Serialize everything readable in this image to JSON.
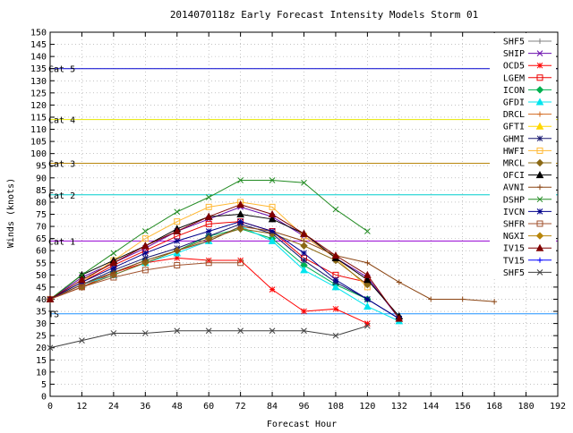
{
  "chart_data": {
    "type": "line",
    "title": "2014070118z Early Forecast Intensity Models Storm 01",
    "xlabel": "Forecast Hour",
    "ylabel": "Winds (knots)",
    "xlim": [
      0,
      192
    ],
    "ylim": [
      0,
      150
    ],
    "xticks": [
      0,
      12,
      24,
      36,
      48,
      60,
      72,
      84,
      96,
      108,
      120,
      132,
      144,
      156,
      168,
      180,
      192
    ],
    "yticks": [
      0,
      5,
      10,
      15,
      20,
      25,
      30,
      35,
      40,
      45,
      50,
      55,
      60,
      65,
      70,
      75,
      80,
      85,
      90,
      95,
      100,
      105,
      110,
      115,
      120,
      125,
      130,
      135,
      140,
      145,
      150
    ],
    "grid": true,
    "legend_position": "right",
    "reference_lines": [
      {
        "label": "TS",
        "value": 34,
        "color": "#1e90ff"
      },
      {
        "label": "Cat 1",
        "value": 64,
        "color": "#9400d3"
      },
      {
        "label": "Cat 2",
        "value": 83,
        "color": "#00cdcd"
      },
      {
        "label": "Cat 3",
        "value": 96,
        "color": "#b8860b"
      },
      {
        "label": "Cat 4",
        "value": 114,
        "color": "#e6e600"
      },
      {
        "label": "Cat 5",
        "value": 135,
        "color": "#0000cd"
      }
    ],
    "series": [
      {
        "name": "SHF5",
        "color": "#808080",
        "marker": "plus",
        "x": [],
        "y": []
      },
      {
        "name": "SHIP",
        "color": "#6a0dad",
        "marker": "x",
        "x": [
          0,
          12,
          24,
          36,
          48,
          60,
          72,
          84,
          96,
          108,
          120,
          132
        ],
        "y": [
          40,
          49,
          55,
          61,
          68,
          73,
          78,
          74,
          66,
          57,
          49,
          32
        ]
      },
      {
        "name": "OCD5",
        "color": "#ff0000",
        "marker": "star",
        "x": [
          0,
          12,
          24,
          36,
          48,
          60,
          72,
          84,
          96,
          108,
          120
        ],
        "y": [
          40,
          45,
          51,
          55,
          57,
          56,
          56,
          44,
          35,
          36,
          30
        ]
      },
      {
        "name": "LGEM",
        "color": "#ee0000",
        "marker": "square",
        "x": [
          0,
          12,
          24,
          36,
          48,
          60,
          72,
          84,
          96,
          108,
          120
        ],
        "y": [
          40,
          47,
          54,
          60,
          66,
          71,
          72,
          68,
          57,
          50,
          47
        ]
      },
      {
        "name": "ICON",
        "color": "#00b050",
        "marker": "diamond",
        "x": [
          0,
          12,
          24,
          36,
          48,
          60,
          72,
          84,
          96,
          108,
          120
        ],
        "y": [
          40,
          46,
          51,
          56,
          60,
          66,
          69,
          65,
          54,
          46,
          40
        ]
      },
      {
        "name": "GFDI",
        "color": "#00e5ee",
        "marker": "triangle",
        "x": [
          0,
          12,
          24,
          36,
          48,
          60,
          72,
          84,
          96,
          108,
          120,
          132
        ],
        "y": [
          40,
          46,
          50,
          55,
          59,
          64,
          70,
          64,
          52,
          45,
          37,
          31
        ]
      },
      {
        "name": "DRCL",
        "color": "#d2691e",
        "marker": "plus",
        "x": [],
        "y": []
      },
      {
        "name": "GFTI",
        "color": "#ffd700",
        "marker": "triangle",
        "x": [],
        "y": []
      },
      {
        "name": "GHMI",
        "color": "#191970",
        "marker": "star",
        "x": [
          0,
          12,
          24,
          36,
          48,
          60,
          72,
          84,
          96,
          108,
          120,
          132
        ],
        "y": [
          40,
          46,
          52,
          57,
          61,
          66,
          71,
          67,
          56,
          47,
          40,
          32
        ]
      },
      {
        "name": "HWFI",
        "color": "#ffb833",
        "marker": "square",
        "x": [
          0,
          12,
          24,
          36,
          48,
          60,
          72,
          84,
          96,
          108,
          120
        ],
        "y": [
          40,
          47,
          56,
          65,
          72,
          78,
          80,
          78,
          66,
          57,
          45
        ]
      },
      {
        "name": "MRCL",
        "color": "#8b6914",
        "marker": "diamond",
        "x": [
          0,
          12,
          24,
          36,
          48,
          60,
          72,
          84,
          96,
          108,
          120
        ],
        "y": [
          40,
          45,
          50,
          55,
          60,
          65,
          69,
          67,
          62,
          56,
          46
        ]
      },
      {
        "name": "OFCI",
        "color": "#000000",
        "marker": "triangle",
        "x": [
          0,
          12,
          24,
          36,
          48,
          60,
          72,
          84,
          96,
          108,
          120,
          132
        ],
        "y": [
          40,
          50,
          56,
          62,
          69,
          74,
          75,
          73,
          67,
          57,
          48,
          33
        ]
      },
      {
        "name": "AVNI",
        "color": "#8b4513",
        "marker": "plus",
        "x": [
          0,
          12,
          24,
          36,
          48,
          60,
          72,
          84,
          96,
          108,
          120,
          132,
          144,
          156,
          168
        ],
        "y": [
          40,
          46,
          51,
          56,
          60,
          64,
          70,
          68,
          64,
          58,
          55,
          47,
          40,
          40,
          39
        ]
      },
      {
        "name": "DSHP",
        "color": "#228b22",
        "marker": "x",
        "x": [
          0,
          12,
          24,
          36,
          48,
          60,
          72,
          84,
          96,
          108,
          120
        ],
        "y": [
          40,
          50,
          59,
          68,
          76,
          82,
          89,
          89,
          88,
          77,
          68
        ]
      },
      {
        "name": "IVCN",
        "color": "#00008b",
        "marker": "star",
        "x": [
          0,
          12,
          24,
          36,
          48,
          60,
          72,
          84,
          96,
          108,
          120,
          132
        ],
        "y": [
          40,
          47,
          53,
          59,
          64,
          68,
          72,
          68,
          59,
          48,
          40,
          32
        ]
      },
      {
        "name": "SHFR",
        "color": "#a0522d",
        "marker": "square",
        "x": [
          0,
          12,
          24,
          36,
          48,
          60,
          72
        ],
        "y": [
          40,
          45,
          49,
          52,
          54,
          55,
          55
        ]
      },
      {
        "name": "NGXI",
        "color": "#b8860b",
        "marker": "diamond",
        "x": [],
        "y": []
      },
      {
        "name": "IV15",
        "color": "#800000",
        "marker": "triangle",
        "x": [
          0,
          12,
          24,
          36,
          48,
          60,
          72,
          84,
          96,
          108,
          120,
          132
        ],
        "y": [
          40,
          48,
          55,
          62,
          68,
          74,
          79,
          75,
          67,
          58,
          50,
          32
        ]
      },
      {
        "name": "TV15",
        "color": "#0000ff",
        "marker": "plus",
        "x": [],
        "y": []
      },
      {
        "name": "SHF5",
        "color": "#404040",
        "marker": "x",
        "x": [
          0,
          12,
          24,
          36,
          48,
          60,
          72,
          84,
          96,
          108,
          120
        ],
        "y": [
          20,
          23,
          26,
          26,
          27,
          27,
          27,
          27,
          27,
          25,
          29
        ]
      }
    ]
  }
}
